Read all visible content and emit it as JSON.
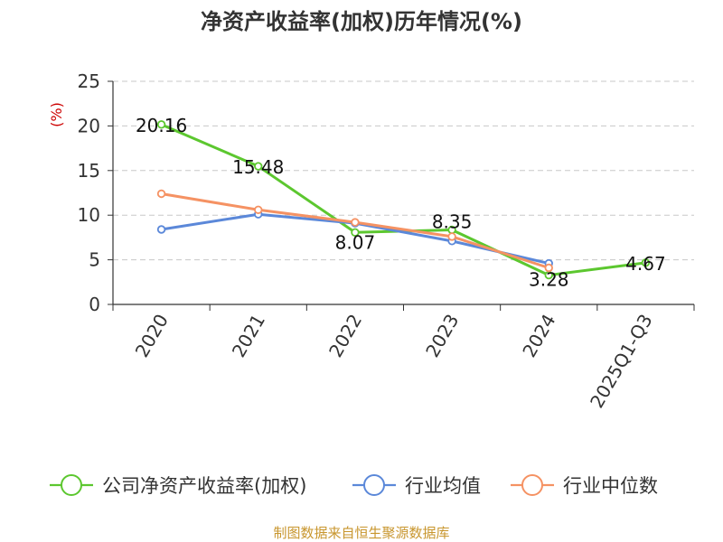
{
  "chart_data": {
    "type": "line",
    "title": "净资产收益率(加权)历年情况(%)",
    "ylabel": "(%)",
    "xlabel": "",
    "ylim": [
      0,
      25
    ],
    "yticks": [
      0,
      5,
      10,
      15,
      20,
      25
    ],
    "grid": true,
    "legend_position": "bottom",
    "categories": [
      "2020",
      "2021",
      "2022",
      "2023",
      "2024",
      "2025Q1-Q3"
    ],
    "series": [
      {
        "name": "公司净资产收益率(加权)",
        "color": "#5cc72f",
        "values": [
          20.16,
          15.48,
          8.07,
          8.35,
          3.28,
          4.67
        ],
        "labels": [
          "20.16",
          "15.48",
          "8.07",
          "8.35",
          "3.28",
          "4.67"
        ]
      },
      {
        "name": "行业均值",
        "color": "#5b88d9",
        "values": [
          8.4,
          10.1,
          9.1,
          7.1,
          4.6,
          null
        ]
      },
      {
        "name": "行业中位数",
        "color": "#f59263",
        "values": [
          12.4,
          10.6,
          9.2,
          7.6,
          4.1,
          null
        ]
      }
    ]
  },
  "source": "制图数据来自恒生聚源数据库"
}
